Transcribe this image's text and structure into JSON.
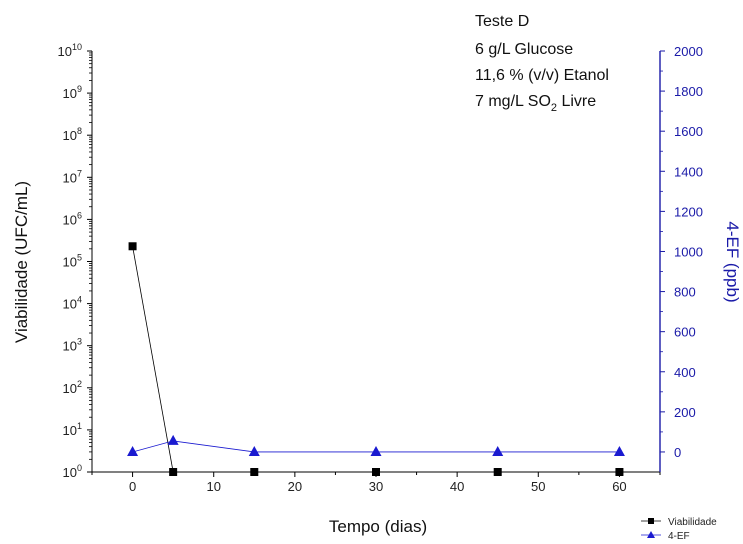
{
  "chart_data": {
    "type": "line",
    "xlabel": "Tempo (dias)",
    "ylabel_left": "Viabilidade (UFC/mL)",
    "ylabel_right": "4-EF (ppb)",
    "xlim": [
      -5,
      65
    ],
    "xticks": [
      0,
      10,
      20,
      30,
      40,
      50,
      60
    ],
    "ylim_left": [
      1,
      10000000000
    ],
    "yscale_left": "log",
    "yticks_left": [
      {
        "base": "10",
        "exp": "0"
      },
      {
        "base": "10",
        "exp": "1"
      },
      {
        "base": "10",
        "exp": "2"
      },
      {
        "base": "10",
        "exp": "3"
      },
      {
        "base": "10",
        "exp": "4"
      },
      {
        "base": "10",
        "exp": "5"
      },
      {
        "base": "10",
        "exp": "6"
      },
      {
        "base": "10",
        "exp": "7"
      },
      {
        "base": "10",
        "exp": "8"
      },
      {
        "base": "10",
        "exp": "9"
      },
      {
        "base": "10",
        "exp": "10"
      }
    ],
    "ylim_right": [
      -100,
      2000
    ],
    "yticks_right": [
      0,
      200,
      400,
      600,
      800,
      1000,
      1200,
      1400,
      1600,
      1800,
      2000
    ],
    "annotation": {
      "line1": "Teste D",
      "line2": "6 g/L Glucose",
      "line3": "11,6 % (v/v) Etanol",
      "line4_pre": "7 mg/L SO",
      "line4_sub": "2",
      "line4_post": " Livre"
    },
    "legend_position": "bottom-right",
    "series": [
      {
        "name": "Viabilidade",
        "axis": "left",
        "marker": "square",
        "color": "#000000",
        "x": [
          0,
          5,
          15,
          30,
          45,
          60
        ],
        "y": [
          230000,
          1,
          1,
          1,
          1,
          1
        ]
      },
      {
        "name": "4-EF",
        "axis": "right",
        "marker": "triangle",
        "color": "#1a1ad0",
        "x": [
          0,
          5,
          15,
          30,
          45,
          60
        ],
        "y": [
          0,
          55,
          0,
          0,
          0,
          0
        ]
      }
    ]
  }
}
